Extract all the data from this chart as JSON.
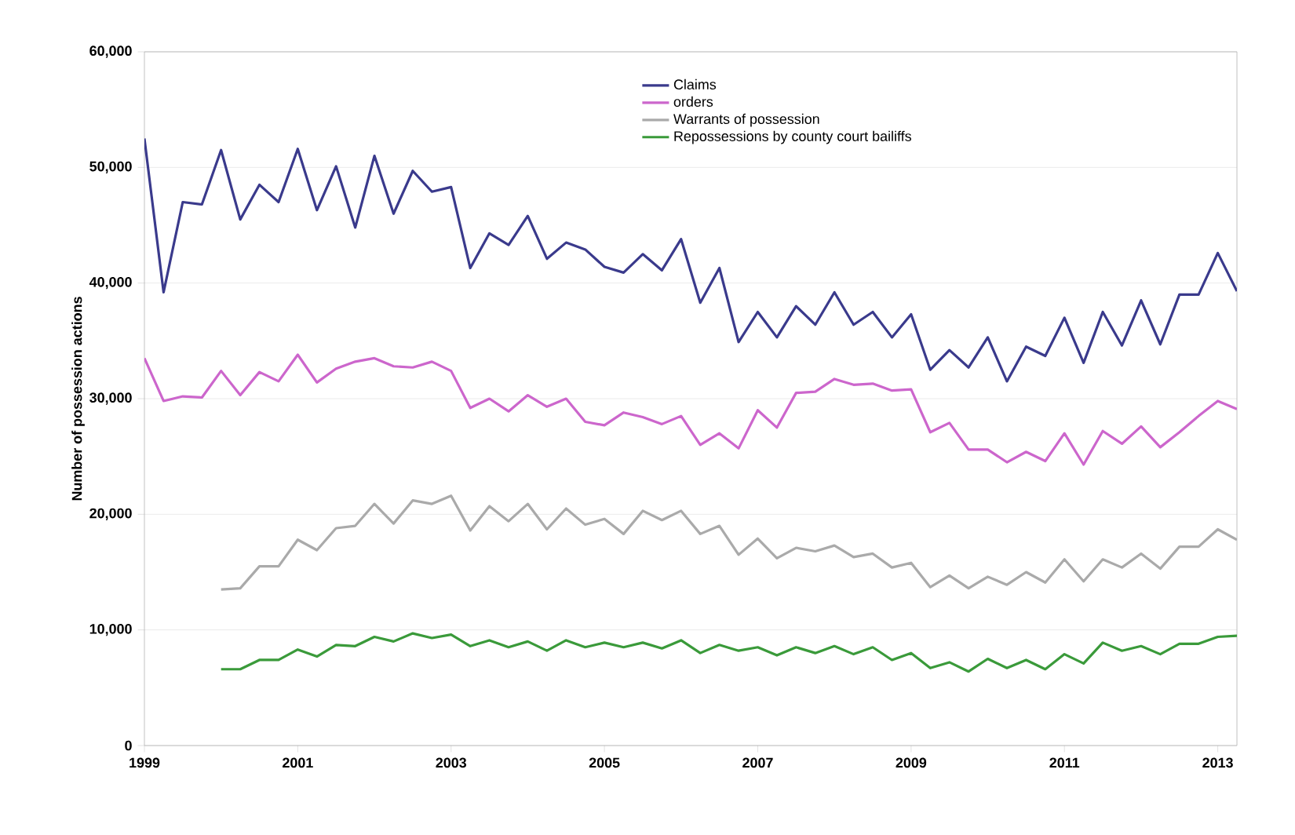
{
  "chart_data": {
    "type": "line",
    "ylabel": "Number of possession actions",
    "xlim": [
      1999,
      2013.25
    ],
    "xticks": [
      1999,
      2001,
      2003,
      2005,
      2007,
      2009,
      2011,
      2013
    ],
    "ylim": [
      0,
      60000
    ],
    "yticks": [
      {
        "value": 0,
        "label": "0"
      },
      {
        "value": 10000,
        "label": "10,000"
      },
      {
        "value": 20000,
        "label": "20,000"
      },
      {
        "value": 30000,
        "label": "30,000"
      },
      {
        "value": 40000,
        "label": "40,000"
      },
      {
        "value": 50000,
        "label": "50,000"
      },
      {
        "value": 60000,
        "label": "60,000"
      }
    ],
    "grid": "y",
    "legend": "top right",
    "marker": "none",
    "line_style": "solid",
    "series": [
      {
        "name": "Claims",
        "color": "#3a3a8c",
        "x": [
          1999,
          1999.25,
          1999.5,
          1999.75,
          2000,
          2000.25,
          2000.5,
          2000.75,
          2001,
          2001.25,
          2001.5,
          2001.75,
          2002,
          2002.25,
          2002.5,
          2002.75,
          2003,
          2003.25,
          2003.5,
          2003.75,
          2004,
          2004.25,
          2004.5,
          2004.75,
          2005,
          2005.25,
          2005.5,
          2005.75,
          2006,
          2006.25,
          2006.5,
          2006.75,
          2007,
          2007.25,
          2007.5,
          2007.75,
          2008,
          2008.25,
          2008.5,
          2008.75,
          2009,
          2009.25,
          2009.5,
          2009.75,
          2010,
          2010.25,
          2010.5,
          2010.75,
          2011,
          2011.25,
          2011.5,
          2011.75,
          2012,
          2012.25,
          2012.5,
          2012.75,
          2013,
          2013.25
        ],
        "values": [
          52500,
          39200,
          47000,
          46800,
          51500,
          45500,
          48500,
          47000,
          51600,
          46300,
          50100,
          44800,
          51000,
          46000,
          49700,
          47900,
          48300,
          41300,
          44300,
          43300,
          45800,
          42100,
          43500,
          42900,
          41400,
          40900,
          42500,
          41100,
          43800,
          38300,
          41300,
          34900,
          37500,
          35300,
          38000,
          36400,
          39200,
          36400,
          37500,
          35300,
          37300,
          32500,
          34200,
          32700,
          35300,
          31500,
          34500,
          33700,
          37000,
          33100,
          37500,
          34600,
          38500,
          34700,
          39000,
          39000,
          42600,
          39300
        ]
      },
      {
        "name": "orders",
        "color": "#cc66cc",
        "x": [
          1999,
          1999.25,
          1999.5,
          1999.75,
          2000,
          2000.25,
          2000.5,
          2000.75,
          2001,
          2001.25,
          2001.5,
          2001.75,
          2002,
          2002.25,
          2002.5,
          2002.75,
          2003,
          2003.25,
          2003.5,
          2003.75,
          2004,
          2004.25,
          2004.5,
          2004.75,
          2005,
          2005.25,
          2005.5,
          2005.75,
          2006,
          2006.25,
          2006.5,
          2006.75,
          2007,
          2007.25,
          2007.5,
          2007.75,
          2008,
          2008.25,
          2008.5,
          2008.75,
          2009,
          2009.25,
          2009.5,
          2009.75,
          2010,
          2010.25,
          2010.5,
          2010.75,
          2011,
          2011.25,
          2011.5,
          2011.75,
          2012,
          2012.25,
          2012.5,
          2012.75,
          2013,
          2013.25
        ],
        "values": [
          33500,
          29800,
          30200,
          30100,
          32400,
          30300,
          32300,
          31500,
          33800,
          31400,
          32600,
          33200,
          33500,
          32800,
          32700,
          33200,
          32400,
          29200,
          30000,
          28900,
          30300,
          29300,
          30000,
          28000,
          27700,
          28800,
          28400,
          27800,
          28500,
          26000,
          27000,
          25700,
          29000,
          27500,
          30500,
          30600,
          31700,
          31200,
          31300,
          30700,
          30800,
          27100,
          27900,
          25600,
          25600,
          24500,
          25400,
          24600,
          27000,
          24300,
          27200,
          26100,
          27600,
          25800,
          27100,
          28500,
          29800,
          29100
        ]
      },
      {
        "name": "Warrants of possession",
        "color": "#aaaaaa",
        "x": [
          2000,
          2000.25,
          2000.5,
          2000.75,
          2001,
          2001.25,
          2001.5,
          2001.75,
          2002,
          2002.25,
          2002.5,
          2002.75,
          2003,
          2003.25,
          2003.5,
          2003.75,
          2004,
          2004.25,
          2004.5,
          2004.75,
          2005,
          2005.25,
          2005.5,
          2005.75,
          2006,
          2006.25,
          2006.5,
          2006.75,
          2007,
          2007.25,
          2007.5,
          2007.75,
          2008,
          2008.25,
          2008.5,
          2008.75,
          2009,
          2009.25,
          2009.5,
          2009.75,
          2010,
          2010.25,
          2010.5,
          2010.75,
          2011,
          2011.25,
          2011.5,
          2011.75,
          2012,
          2012.25,
          2012.5,
          2012.75,
          2013,
          2013.25
        ],
        "values": [
          13500,
          13600,
          15500,
          15500,
          17800,
          16900,
          18800,
          19000,
          20900,
          19200,
          21200,
          20900,
          21600,
          18600,
          20700,
          19400,
          20900,
          18700,
          20500,
          19100,
          19600,
          18300,
          20300,
          19500,
          20300,
          18300,
          19000,
          16500,
          17900,
          16200,
          17100,
          16800,
          17300,
          16300,
          16600,
          15400,
          15800,
          13700,
          14700,
          13600,
          14600,
          13900,
          15000,
          14100,
          16100,
          14200,
          16100,
          15400,
          16600,
          15300,
          17200,
          17200,
          18700,
          17800
        ]
      },
      {
        "name": "Repossessions by county court bailiffs",
        "color": "#3a9a3a",
        "x": [
          2000,
          2000.25,
          2000.5,
          2000.75,
          2001,
          2001.25,
          2001.5,
          2001.75,
          2002,
          2002.25,
          2002.5,
          2002.75,
          2003,
          2003.25,
          2003.5,
          2003.75,
          2004,
          2004.25,
          2004.5,
          2004.75,
          2005,
          2005.25,
          2005.5,
          2005.75,
          2006,
          2006.25,
          2006.5,
          2006.75,
          2007,
          2007.25,
          2007.5,
          2007.75,
          2008,
          2008.25,
          2008.5,
          2008.75,
          2009,
          2009.25,
          2009.5,
          2009.75,
          2010,
          2010.25,
          2010.5,
          2010.75,
          2011,
          2011.25,
          2011.5,
          2011.75,
          2012,
          2012.25,
          2012.5,
          2012.75,
          2013,
          2013.25
        ],
        "values": [
          6600,
          6600,
          7400,
          7400,
          8300,
          7700,
          8700,
          8600,
          9400,
          9000,
          9700,
          9300,
          9600,
          8600,
          9100,
          8500,
          9000,
          8200,
          9100,
          8500,
          8900,
          8500,
          8900,
          8400,
          9100,
          8000,
          8700,
          8200,
          8500,
          7800,
          8500,
          8000,
          8600,
          7900,
          8500,
          7400,
          8000,
          6700,
          7200,
          6400,
          7500,
          6700,
          7400,
          6600,
          7900,
          7100,
          8900,
          8200,
          8600,
          7900,
          8800,
          8800,
          9400,
          9500
        ]
      }
    ]
  }
}
